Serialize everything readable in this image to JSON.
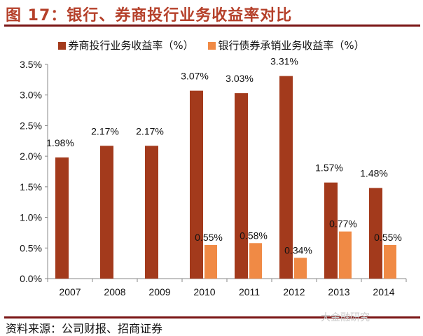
{
  "title": "图 17：银行、券商投行业务收益率对比",
  "source": "资料来源：公司财报、招商证券",
  "watermark": "大金融研究",
  "chart_data": {
    "type": "bar",
    "title": "图 17：银行、券商投行业务收益率对比",
    "categories": [
      "2007",
      "2008",
      "2009",
      "2010",
      "2011",
      "2012",
      "2013",
      "2014"
    ],
    "series": [
      {
        "name": "券商投行业务收益率（%）",
        "color": "#a33a1c",
        "values": [
          1.98,
          2.17,
          2.17,
          3.07,
          3.03,
          3.31,
          1.57,
          1.48
        ],
        "labels": [
          "1.98%",
          "2.17%",
          "2.17%",
          "3.07%",
          "3.03%",
          "3.31%",
          "1.57%",
          "1.48%"
        ]
      },
      {
        "name": "银行债券承销业务收益率（%）",
        "color": "#f08a45",
        "values": [
          null,
          null,
          null,
          0.55,
          0.58,
          0.34,
          0.77,
          0.55
        ],
        "labels": [
          null,
          null,
          null,
          "0.55%",
          "0.58%",
          "0.34%",
          "0.77%",
          "0.55%"
        ]
      }
    ],
    "ylim": [
      0,
      3.5
    ],
    "yticks": [
      "0.0%",
      "0.5%",
      "1.0%",
      "1.5%",
      "2.0%",
      "2.5%",
      "3.0%",
      "3.5%"
    ],
    "grid": false,
    "legend": "top"
  }
}
